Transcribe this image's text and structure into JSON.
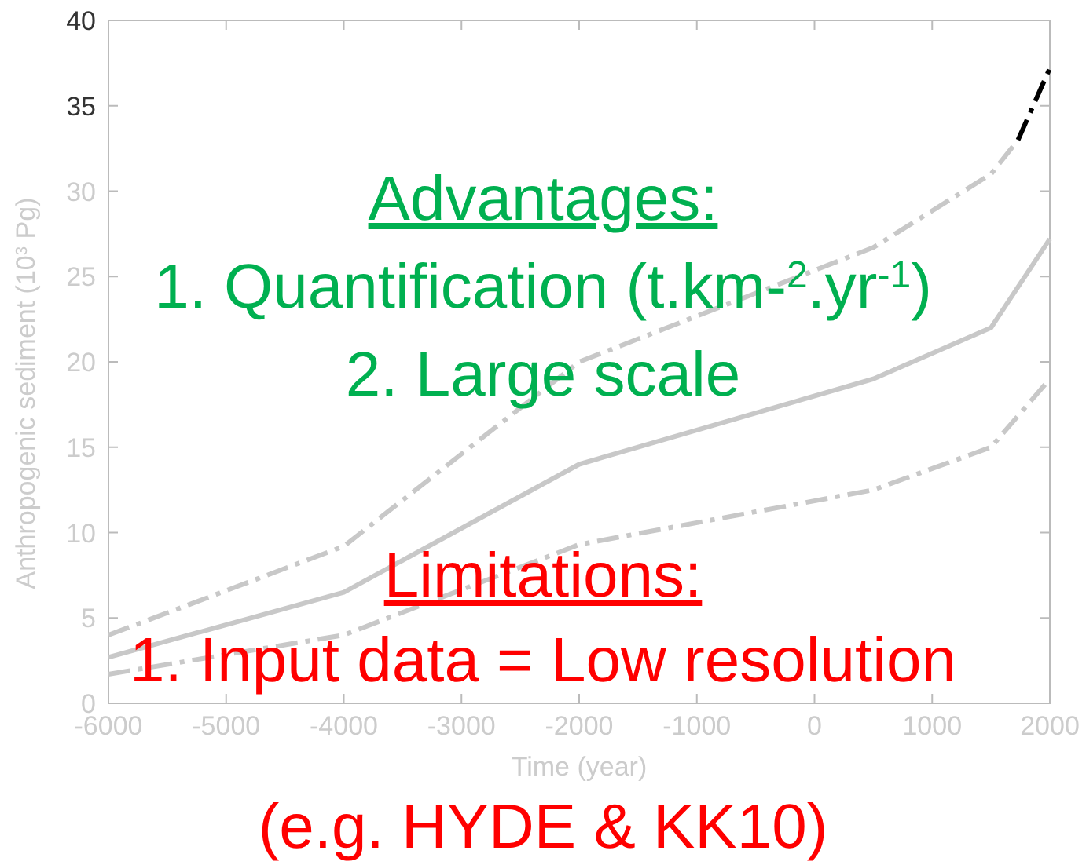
{
  "chart_data": {
    "type": "line",
    "xlabel": "Time (year)",
    "ylabel": "Anthropogenic sediment (10$^{3}$ Pg)",
    "xlim": [
      -6000,
      2000
    ],
    "xticks": [
      -6000,
      -5000,
      -4000,
      -3000,
      -2000,
      -1000,
      0,
      1000,
      2000
    ],
    "ylim": [
      0,
      40
    ],
    "yticks": [
      0,
      5,
      10,
      15,
      20,
      25,
      30,
      35,
      40
    ],
    "grid": false,
    "marker": "none",
    "series": [
      {
        "color": "#c8c8c8",
        "line_style": "dashed",
        "x": [
          -6000,
          -4000,
          -2000,
          500,
          1500,
          1730
        ],
        "values": [
          4,
          9.2,
          20,
          26.7,
          31,
          33
        ]
      },
      {
        "color": "#000000",
        "line_style": "dashed",
        "x": [
          1730,
          2000
        ],
        "values": [
          33,
          37.2
        ]
      },
      {
        "color": "#c8c8c8",
        "line_style": "solid",
        "x": [
          -6000,
          -4000,
          -2000,
          500,
          1500,
          2000
        ],
        "values": [
          2.7,
          6.5,
          14,
          19,
          22,
          27.2
        ]
      },
      {
        "color": "#c8c8c8",
        "line_style": "dashed",
        "x": [
          -6000,
          -4000,
          -2000,
          500,
          1500,
          2000
        ],
        "values": [
          1.7,
          4,
          9.3,
          12.5,
          15,
          19
        ]
      }
    ],
    "annotations": [
      "Advantages:",
      "1. Quantification (t.km-$^{2}$.yr$^{-1}$)",
      "2. Large scale",
      "Limitations:",
      "1. Input data = Low resolution",
      "(e.g. HYDE & KK10)"
    ]
  }
}
